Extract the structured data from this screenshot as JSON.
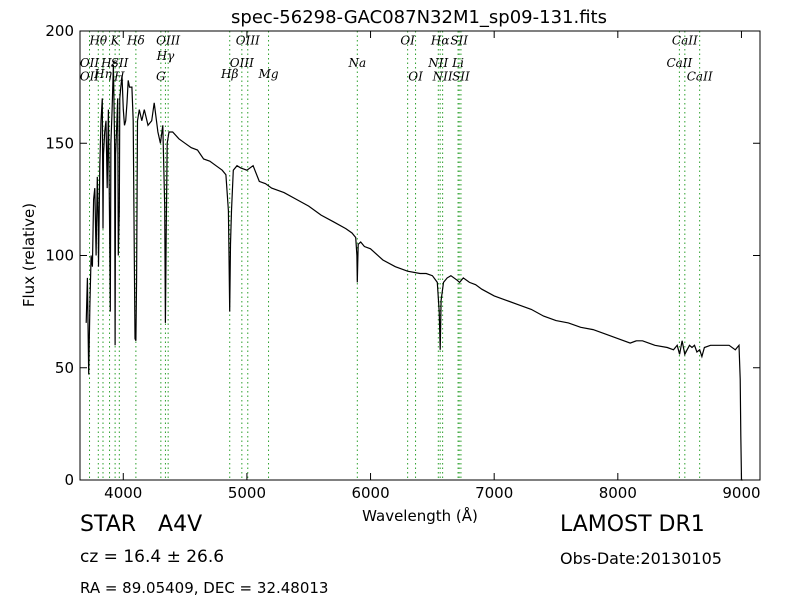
{
  "chart_data": {
    "type": "line",
    "title": "spec-56298-GAC087N32M1_sp09-131.fits",
    "xlabel": "Wavelength (Å)",
    "ylabel": "Flux (relative)",
    "xlim": [
      3650,
      9150
    ],
    "ylim": [
      0,
      200
    ],
    "xticks": [
      4000,
      5000,
      6000,
      7000,
      8000,
      9000
    ],
    "yticks": [
      0,
      50,
      100,
      150,
      200
    ],
    "grid": false,
    "line_color": "#000000",
    "marker_color": "#2ca02c",
    "series": [
      {
        "x": [
          3700,
          3710,
          3720,
          3730,
          3740,
          3750,
          3760,
          3770,
          3780,
          3790,
          3798,
          3800,
          3810,
          3820,
          3830,
          3836,
          3840,
          3850,
          3860,
          3870,
          3880,
          3889,
          3895,
          3900,
          3910,
          3920,
          3930,
          3934,
          3938,
          3945,
          3955,
          3960,
          3968,
          3972,
          3980,
          3990,
          4000,
          4010,
          4020,
          4030,
          4040,
          4050,
          4060,
          4070,
          4080,
          4090,
          4095,
          4102,
          4108,
          4115,
          4130,
          4150,
          4170,
          4200,
          4230,
          4250,
          4280,
          4300,
          4320,
          4335,
          4341,
          4347,
          4355,
          4370,
          4400,
          4450,
          4500,
          4550,
          4600,
          4650,
          4700,
          4750,
          4800,
          4830,
          4850,
          4855,
          4861,
          4867,
          4875,
          4890,
          4920,
          4950,
          5000,
          5050,
          5100,
          5150,
          5200,
          5300,
          5400,
          5500,
          5600,
          5700,
          5800,
          5850,
          5880,
          5890,
          5893,
          5896,
          5900,
          5920,
          5950,
          6000,
          6100,
          6200,
          6300,
          6400,
          6450,
          6500,
          6540,
          6555,
          6563,
          6571,
          6590,
          6620,
          6650,
          6700,
          6720,
          6750,
          6800,
          6850,
          6900,
          7000,
          7100,
          7200,
          7300,
          7400,
          7500,
          7600,
          7700,
          7800,
          7900,
          8000,
          8100,
          8150,
          8200,
          8250,
          8300,
          8400,
          8450,
          8480,
          8500,
          8520,
          8542,
          8560,
          8580,
          8600,
          8620,
          8640,
          8662,
          8680,
          8700,
          8750,
          8800,
          8850,
          8900,
          8950,
          8980,
          8990,
          8995,
          9000,
          9010
        ],
        "y": [
          70,
          90,
          47,
          78,
          100,
          95,
          125,
          130,
          100,
          135,
          113,
          95,
          140,
          160,
          170,
          112,
          145,
          155,
          160,
          130,
          165,
          118,
          75,
          150,
          165,
          185,
          150,
          60,
          145,
          155,
          170,
          100,
          120,
          170,
          175,
          180,
          165,
          158,
          160,
          168,
          178,
          175,
          175,
          175,
          160,
          95,
          63,
          62,
          90,
          160,
          165,
          160,
          165,
          158,
          160,
          168,
          155,
          150,
          158,
          122,
          70,
          110,
          150,
          155,
          155,
          152,
          150,
          148,
          147,
          143,
          142,
          140,
          138,
          136,
          120,
          100,
          75,
          105,
          120,
          138,
          140,
          139,
          138,
          140,
          133,
          132,
          130,
          128,
          125,
          122,
          118,
          115,
          112,
          110,
          108,
          100,
          88,
          96,
          105,
          106,
          104,
          103,
          98,
          95,
          93,
          92,
          92,
          91,
          88,
          75,
          58,
          80,
          88,
          90,
          91,
          89,
          88,
          90,
          88,
          87,
          85,
          82,
          80,
          78,
          76,
          73,
          71,
          70,
          68,
          67,
          65,
          63,
          61,
          62,
          62,
          61,
          60,
          59,
          58,
          60,
          56,
          62,
          56,
          58,
          60,
          59,
          60,
          57,
          58,
          55,
          59,
          60,
          60,
          60,
          60,
          58,
          60,
          45,
          20,
          0,
          0
        ]
      }
    ],
    "annotations": [
      {
        "label": "Hθ",
        "x": 3798,
        "y": 194
      },
      {
        "label": "OII",
        "x": 3727,
        "y": 184
      },
      {
        "label": "OII",
        "x": 3727,
        "y": 178
      },
      {
        "label": "K",
        "x": 3934,
        "y": 194
      },
      {
        "label": "Hε",
        "x": 3889,
        "y": 184
      },
      {
        "label": "Hη",
        "x": 3836,
        "y": 179
      },
      {
        "label": "SII",
        "x": 3970,
        "y": 184
      },
      {
        "label": "H",
        "x": 3968,
        "y": 178
      },
      {
        "label": "Hδ",
        "x": 4102,
        "y": 194
      },
      {
        "label": "OIII",
        "x": 4363,
        "y": 194
      },
      {
        "label": "Hγ",
        "x": 4341,
        "y": 187
      },
      {
        "label": "G",
        "x": 4304,
        "y": 178
      },
      {
        "label": "OIII",
        "x": 5007,
        "y": 194
      },
      {
        "label": "OIII",
        "x": 4959,
        "y": 184
      },
      {
        "label": "Hβ",
        "x": 4861,
        "y": 179
      },
      {
        "label": "Mg",
        "x": 5175,
        "y": 179
      },
      {
        "label": "Na",
        "x": 5893,
        "y": 184
      },
      {
        "label": "OI",
        "x": 6300,
        "y": 194
      },
      {
        "label": "OI",
        "x": 6364,
        "y": 178
      },
      {
        "label": "Hα",
        "x": 6563,
        "y": 194
      },
      {
        "label": "SII",
        "x": 6717,
        "y": 194
      },
      {
        "label": "NII",
        "x": 6548,
        "y": 184
      },
      {
        "label": "Li",
        "x": 6708,
        "y": 184
      },
      {
        "label": "NII",
        "x": 6583,
        "y": 178
      },
      {
        "label": "SII",
        "x": 6731,
        "y": 178
      },
      {
        "label": "CaII",
        "x": 8542,
        "y": 194
      },
      {
        "label": "CaII",
        "x": 8498,
        "y": 184
      },
      {
        "label": "CaII",
        "x": 8662,
        "y": 178
      }
    ],
    "line_markers": [
      3727,
      3798,
      3836,
      3889,
      3934,
      3968,
      4102,
      4304,
      4341,
      4363,
      4861,
      4959,
      5007,
      5175,
      5893,
      6300,
      6364,
      6548,
      6563,
      6583,
      6708,
      6717,
      6731,
      8498,
      8542,
      8662
    ]
  },
  "info": {
    "object_class": "STAR",
    "subclass": "A4V",
    "redshift_text": "cz = 16.4  ± 26.6",
    "survey": "LAMOST DR1",
    "obs_date": "Obs-Date:20130105",
    "coords": "RA = 89.05409, DEC = 32.48013"
  }
}
